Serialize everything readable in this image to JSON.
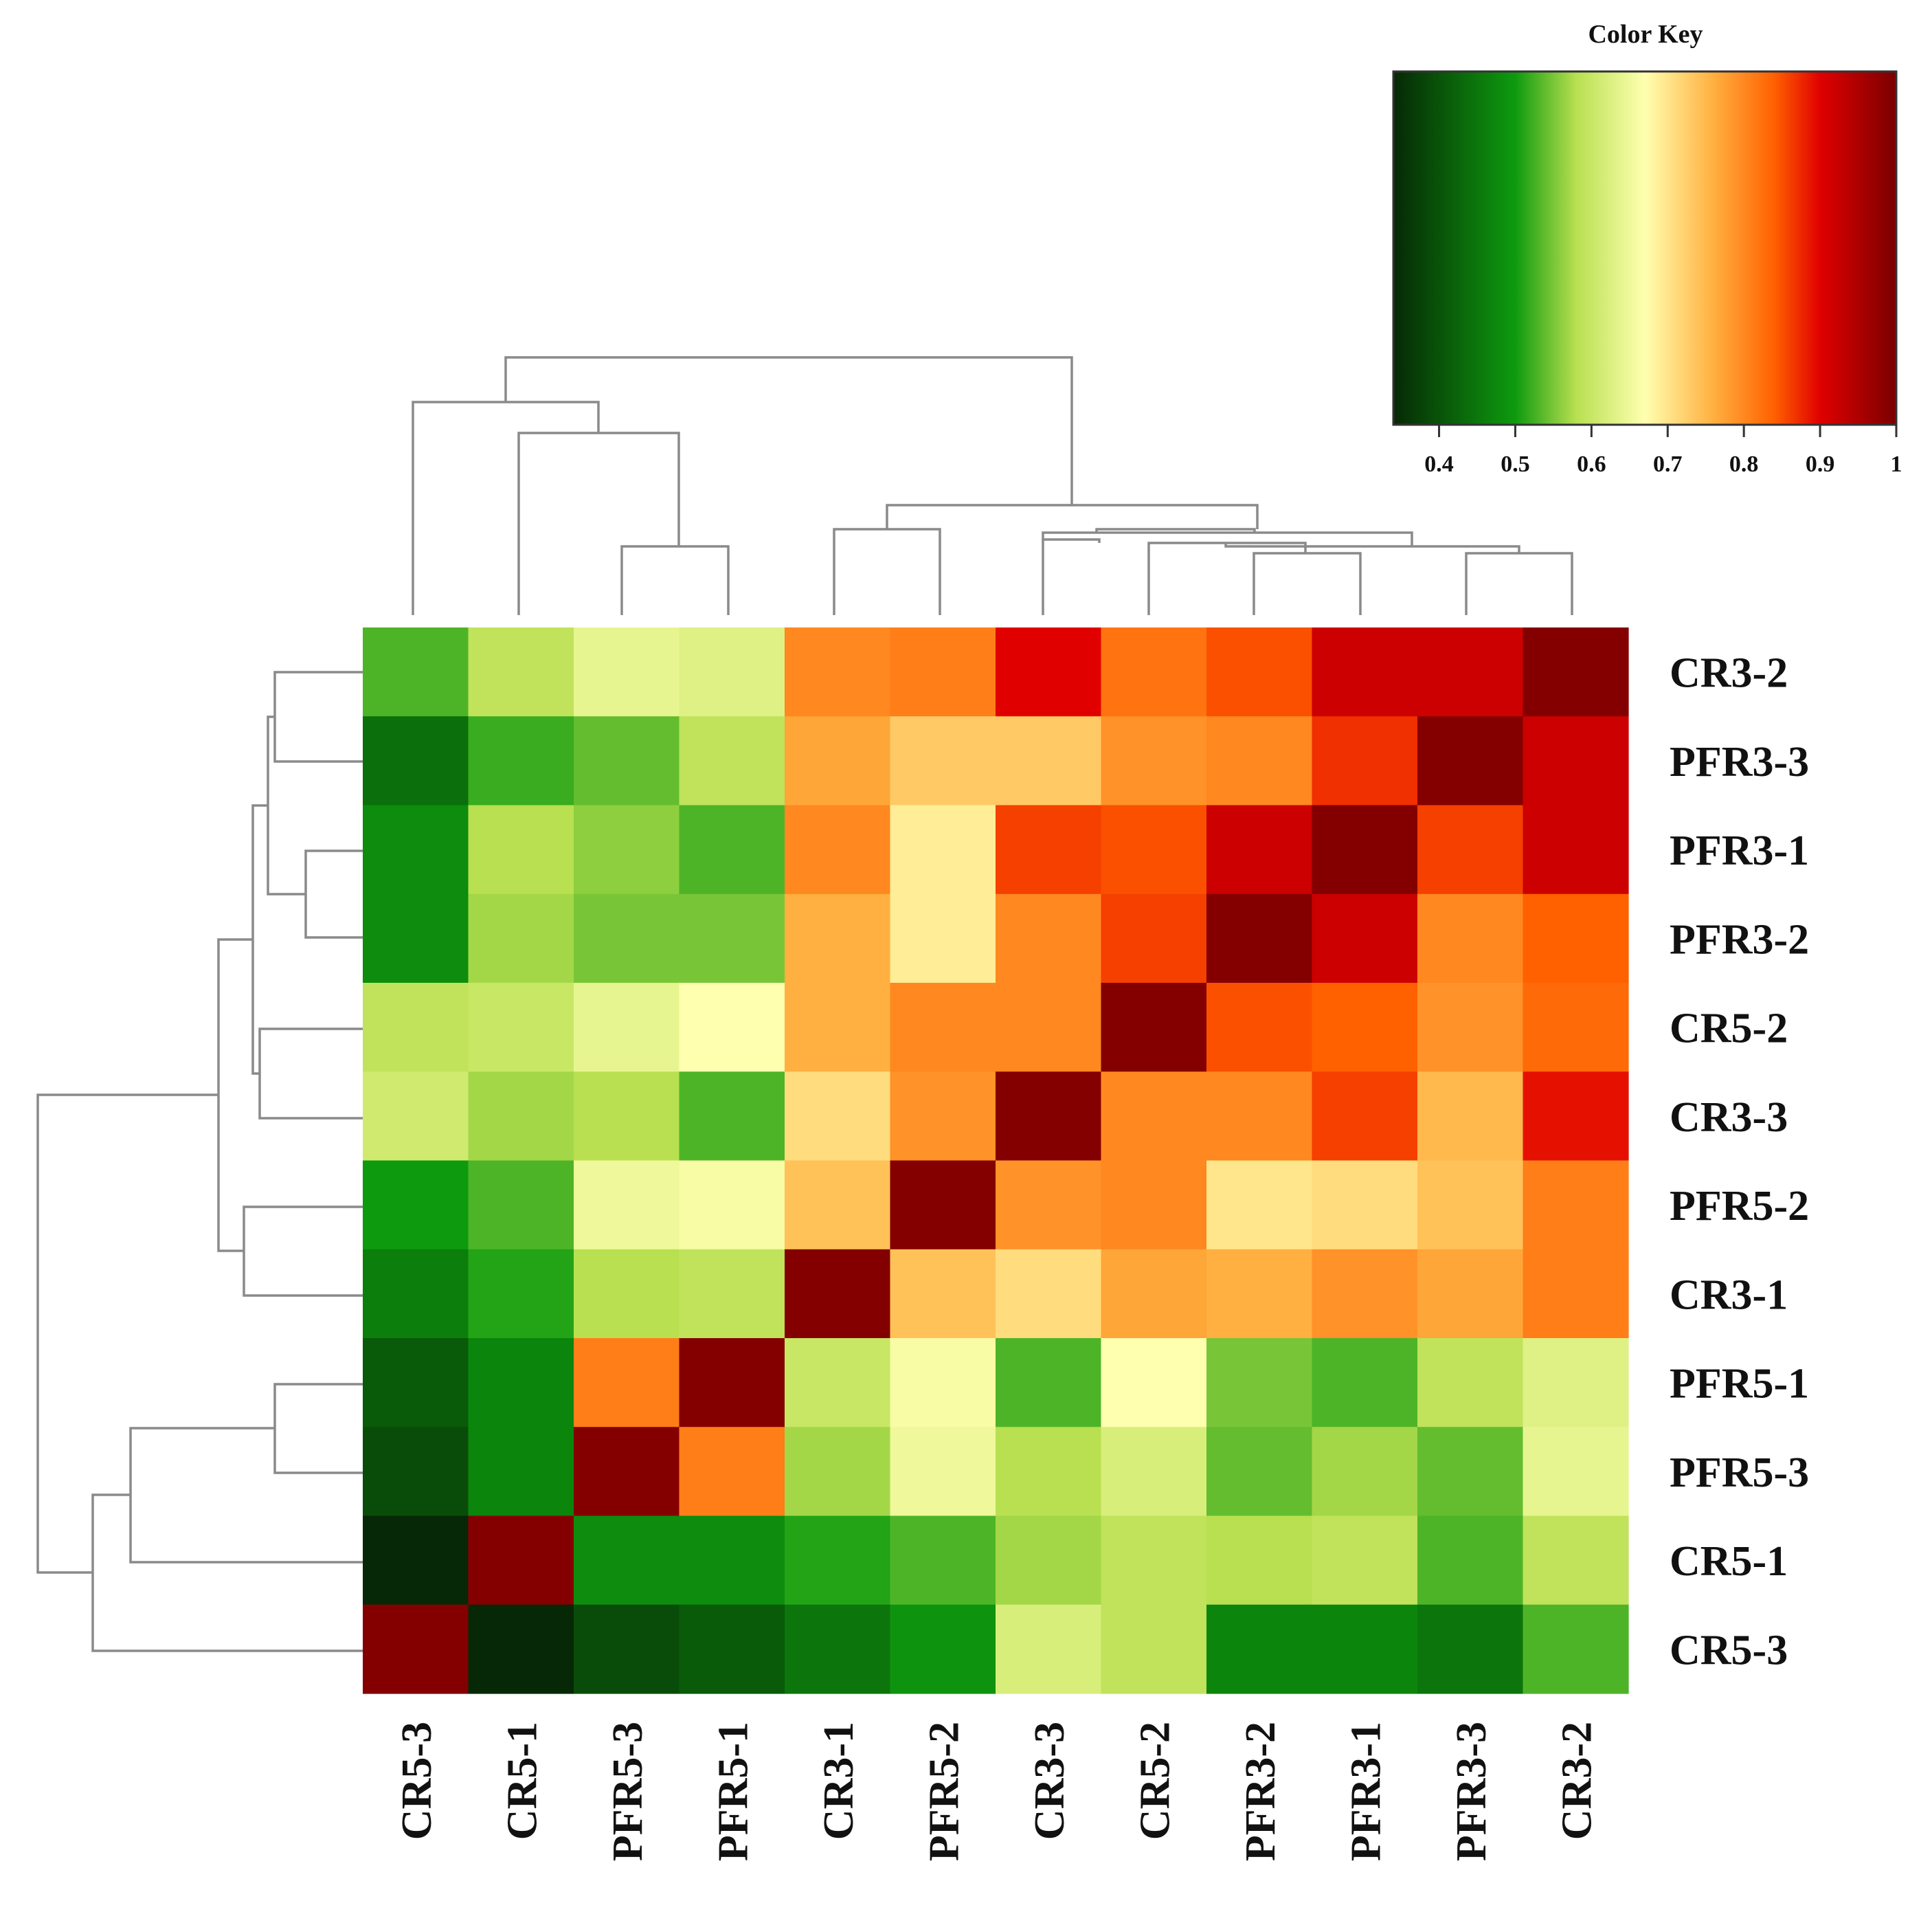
{
  "chart_data": {
    "type": "heatmap",
    "title": "",
    "color_key": {
      "title": "Color Key",
      "ticks": [
        "0.4",
        "0.5",
        "0.6",
        "0.7",
        "0.8",
        "0.9",
        "1"
      ],
      "range": [
        0.34,
        1.0
      ],
      "stops": [
        {
          "value": 0.34,
          "color": "#062806"
        },
        {
          "value": 0.5,
          "color": "#0e9a0e"
        },
        {
          "value": 0.58,
          "color": "#b8e050"
        },
        {
          "value": 0.67,
          "color": "#ffffb0"
        },
        {
          "value": 0.76,
          "color": "#ffb040"
        },
        {
          "value": 0.84,
          "color": "#ff6000"
        },
        {
          "value": 0.9,
          "color": "#e00000"
        },
        {
          "value": 1.0,
          "color": "#7a0000"
        }
      ]
    },
    "rows": [
      "CR3-2",
      "PFR3-3",
      "PFR3-1",
      "PFR3-2",
      "CR5-2",
      "CR3-3",
      "PFR5-2",
      "CR3-1",
      "PFR5-1",
      "PFR5-3",
      "CR5-1",
      "CR5-3"
    ],
    "columns": [
      "CR5-3",
      "CR5-1",
      "PFR5-3",
      "PFR5-1",
      "CR3-1",
      "PFR5-2",
      "CR3-3",
      "CR5-2",
      "PFR3-2",
      "PFR3-1",
      "PFR3-3",
      "CR3-2"
    ],
    "values": [
      [
        0.53,
        0.59,
        0.64,
        0.63,
        0.8,
        0.81,
        0.9,
        0.82,
        0.85,
        0.92,
        0.92,
        0.99
      ],
      [
        0.44,
        0.52,
        0.54,
        0.59,
        0.77,
        0.73,
        0.73,
        0.79,
        0.8,
        0.87,
        0.99,
        0.92
      ],
      [
        0.48,
        0.58,
        0.56,
        0.53,
        0.8,
        0.69,
        0.86,
        0.85,
        0.92,
        0.99,
        0.86,
        0.92
      ],
      [
        0.48,
        0.57,
        0.55,
        0.55,
        0.76,
        0.69,
        0.8,
        0.86,
        0.99,
        0.92,
        0.8,
        0.84
      ],
      [
        0.59,
        0.6,
        0.64,
        0.67,
        0.76,
        0.8,
        0.8,
        0.99,
        0.85,
        0.84,
        0.79,
        0.83
      ],
      [
        0.61,
        0.57,
        0.58,
        0.53,
        0.71,
        0.79,
        0.99,
        0.8,
        0.8,
        0.86,
        0.75,
        0.89
      ],
      [
        0.5,
        0.53,
        0.65,
        0.66,
        0.74,
        0.99,
        0.79,
        0.8,
        0.7,
        0.71,
        0.74,
        0.81
      ],
      [
        0.46,
        0.51,
        0.58,
        0.59,
        0.99,
        0.74,
        0.71,
        0.77,
        0.76,
        0.79,
        0.77,
        0.81
      ],
      [
        0.41,
        0.47,
        0.81,
        0.99,
        0.6,
        0.66,
        0.53,
        0.67,
        0.55,
        0.53,
        0.59,
        0.63
      ],
      [
        0.39,
        0.47,
        0.99,
        0.81,
        0.57,
        0.65,
        0.58,
        0.62,
        0.54,
        0.57,
        0.54,
        0.64
      ],
      [
        0.34,
        0.99,
        0.48,
        0.48,
        0.51,
        0.53,
        0.57,
        0.59,
        0.58,
        0.59,
        0.53,
        0.59
      ],
      [
        0.99,
        0.34,
        0.39,
        0.41,
        0.45,
        0.49,
        0.62,
        0.59,
        0.47,
        0.47,
        0.45,
        0.53
      ]
    ]
  }
}
